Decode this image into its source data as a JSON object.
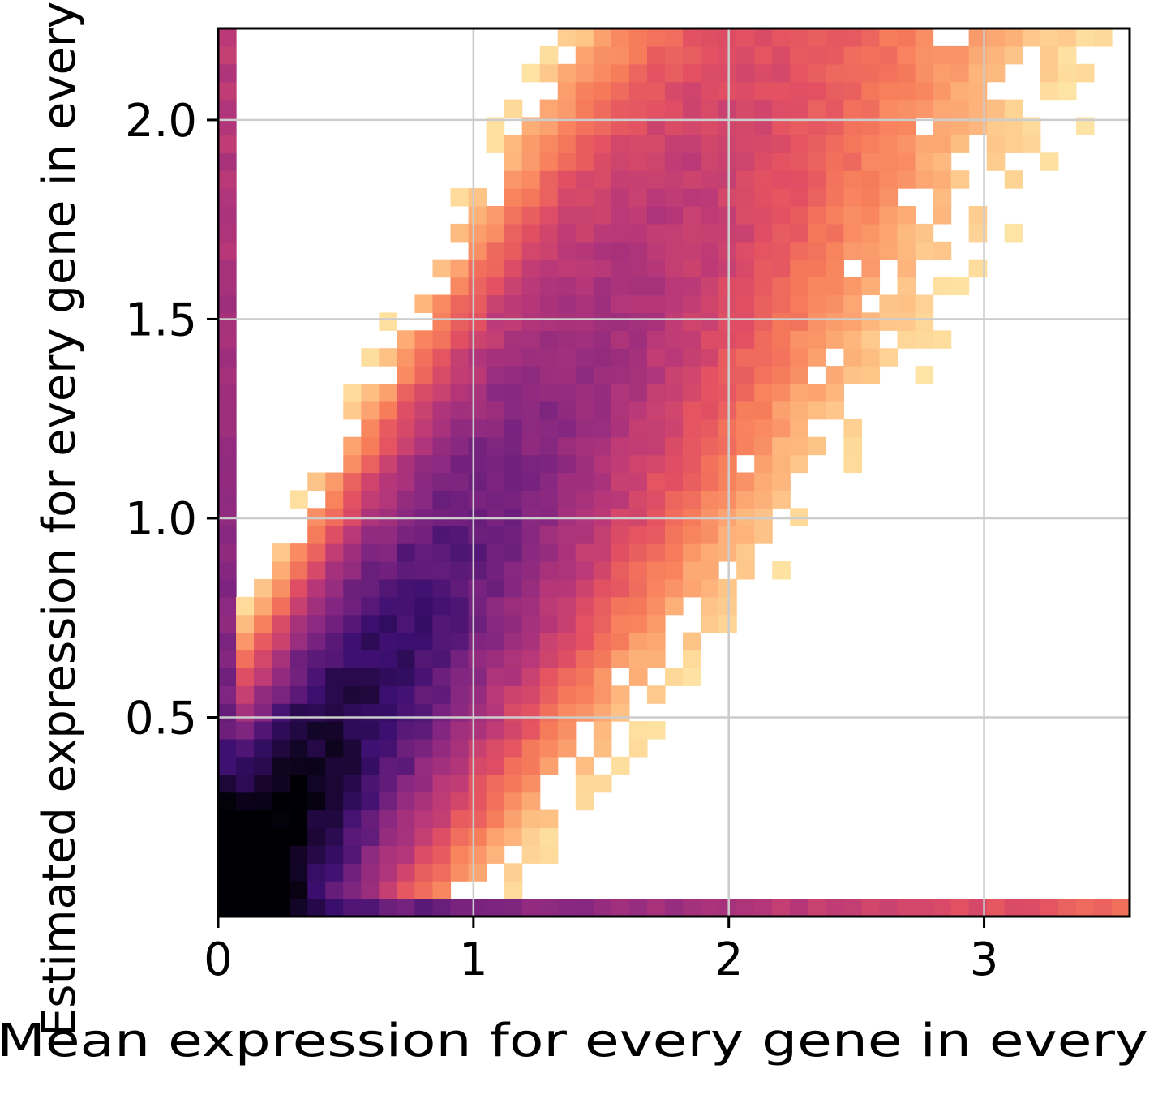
{
  "chart_data": {
    "type": "heatmap",
    "title": "",
    "xlabel": "Mean expression for every gene in every",
    "ylabel": "Estimated expression for every gene in every",
    "xlim": [
      0,
      3.57
    ],
    "ylim": [
      0,
      2.23
    ],
    "x_ticks": [
      0,
      1,
      2,
      3
    ],
    "x_tick_labels": [
      "0",
      "1",
      "2",
      "3"
    ],
    "y_ticks": [
      0.5,
      1.0,
      1.5,
      2.0
    ],
    "y_tick_labels": [
      "0.5",
      "1.0",
      "1.5",
      "2.0"
    ],
    "grid": true,
    "colormap": "magma_r",
    "colors": {
      "grid": "#cccccc",
      "axes": "#000000",
      "low_density": "#fcfdbf",
      "high_density": "#000004"
    },
    "bins": {
      "nx": 51,
      "ny": 50,
      "ridge_description": "2D histogram density, counts highest near origin, ridge along y ≈ x"
    }
  }
}
